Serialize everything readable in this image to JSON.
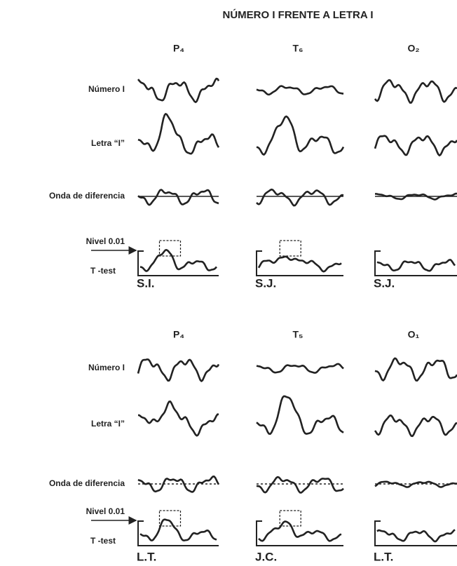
{
  "title": "NÚMERO I FRENTE A LETRA I",
  "row_labels": {
    "number": "Número I",
    "letter": "Letra “I”",
    "difference": "Onda de diferencia",
    "level": "Nivel 0.01",
    "ttest": "T -test"
  },
  "panels": [
    {
      "columns": [
        "P₄",
        "T₆",
        "O₂"
      ],
      "subjects": [
        "S.I.",
        "S.J.",
        "S.J."
      ]
    },
    {
      "columns": [
        "P₄",
        "T₅",
        "O₁"
      ],
      "subjects": [
        "L.T.",
        "J.C.",
        "L.T."
      ]
    }
  ]
}
